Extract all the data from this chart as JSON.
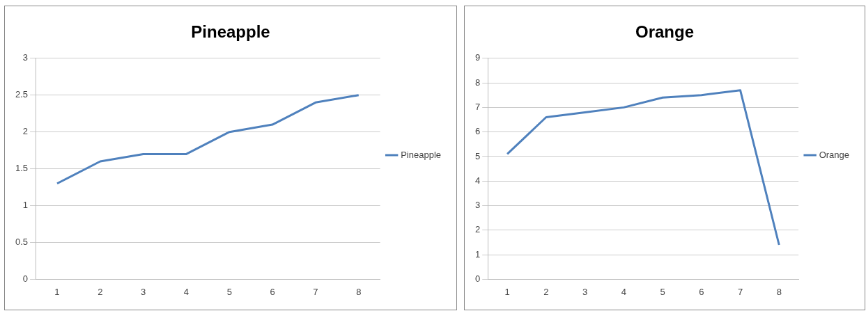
{
  "chart_data": [
    {
      "type": "line",
      "title": "Pineapple",
      "categories": [
        "1",
        "2",
        "3",
        "4",
        "5",
        "6",
        "7",
        "8"
      ],
      "series": [
        {
          "name": "Pineapple",
          "color": "#4f81bd",
          "values": [
            1.3,
            1.6,
            1.7,
            1.7,
            2.0,
            2.1,
            2.4,
            2.5
          ]
        }
      ],
      "ylim": [
        0,
        3
      ],
      "yticks": [
        0,
        0.5,
        1,
        1.5,
        2,
        2.5,
        3
      ],
      "grid": "y",
      "legend": "right",
      "marker": "none"
    },
    {
      "type": "line",
      "title": "Orange",
      "categories": [
        "1",
        "2",
        "3",
        "4",
        "5",
        "6",
        "7",
        "8"
      ],
      "series": [
        {
          "name": "Orange",
          "color": "#4f81bd",
          "values": [
            5.1,
            6.6,
            6.8,
            7.0,
            7.4,
            7.5,
            7.7,
            1.4
          ]
        }
      ],
      "ylim": [
        0,
        9
      ],
      "yticks": [
        0,
        1,
        2,
        3,
        4,
        5,
        6,
        7,
        8,
        9
      ],
      "grid": "y",
      "legend": "right",
      "marker": "none"
    }
  ]
}
